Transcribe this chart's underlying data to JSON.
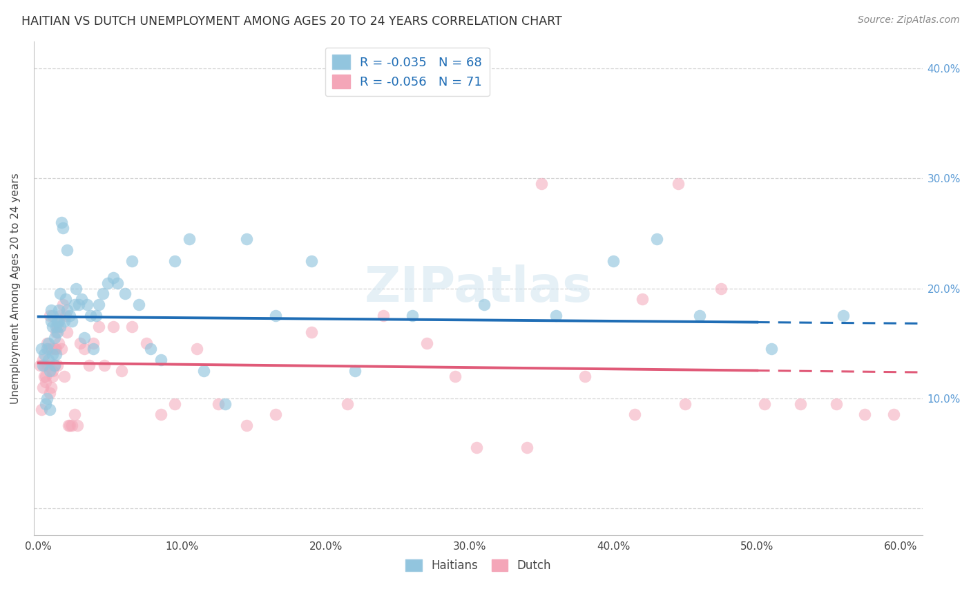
{
  "title": "HAITIAN VS DUTCH UNEMPLOYMENT AMONG AGES 20 TO 24 YEARS CORRELATION CHART",
  "source": "Source: ZipAtlas.com",
  "ylabel_label": "Unemployment Among Ages 20 to 24 years",
  "legend_r1": "-0.035",
  "legend_n1": "68",
  "legend_r2": "-0.056",
  "legend_n2": "71",
  "legend_label1": "Haitians",
  "legend_label2": "Dutch",
  "blue_color": "#92c5de",
  "pink_color": "#f4a6b8",
  "blue_line_color": "#1f6db5",
  "pink_line_color": "#e05a78",
  "blue_scatter_alpha": 0.65,
  "pink_scatter_alpha": 0.55,
  "marker_size": 160,
  "xlim": [
    -0.003,
    0.615
  ],
  "ylim": [
    -0.025,
    0.425
  ],
  "blue_R": -0.035,
  "pink_R": -0.056,
  "haitian_x": [
    0.002,
    0.003,
    0.004,
    0.005,
    0.006,
    0.006,
    0.007,
    0.007,
    0.008,
    0.008,
    0.009,
    0.009,
    0.01,
    0.01,
    0.01,
    0.011,
    0.011,
    0.012,
    0.012,
    0.013,
    0.013,
    0.014,
    0.014,
    0.015,
    0.015,
    0.016,
    0.017,
    0.018,
    0.019,
    0.02,
    0.02,
    0.022,
    0.023,
    0.025,
    0.026,
    0.028,
    0.03,
    0.032,
    0.034,
    0.036,
    0.038,
    0.04,
    0.042,
    0.045,
    0.048,
    0.052,
    0.055,
    0.06,
    0.065,
    0.07,
    0.078,
    0.085,
    0.095,
    0.105,
    0.115,
    0.13,
    0.145,
    0.165,
    0.19,
    0.22,
    0.26,
    0.31,
    0.36,
    0.4,
    0.43,
    0.46,
    0.51,
    0.56
  ],
  "haitian_y": [
    0.145,
    0.13,
    0.14,
    0.095,
    0.1,
    0.145,
    0.135,
    0.15,
    0.125,
    0.09,
    0.18,
    0.17,
    0.165,
    0.175,
    0.14,
    0.13,
    0.155,
    0.165,
    0.14,
    0.17,
    0.16,
    0.18,
    0.17,
    0.165,
    0.195,
    0.26,
    0.255,
    0.17,
    0.19,
    0.235,
    0.18,
    0.175,
    0.17,
    0.185,
    0.2,
    0.185,
    0.19,
    0.155,
    0.185,
    0.175,
    0.145,
    0.175,
    0.185,
    0.195,
    0.205,
    0.21,
    0.205,
    0.195,
    0.225,
    0.185,
    0.145,
    0.135,
    0.225,
    0.245,
    0.125,
    0.095,
    0.245,
    0.175,
    0.225,
    0.125,
    0.175,
    0.185,
    0.175,
    0.225,
    0.245,
    0.175,
    0.145,
    0.175
  ],
  "dutch_x": [
    0.001,
    0.002,
    0.003,
    0.003,
    0.004,
    0.004,
    0.005,
    0.005,
    0.006,
    0.006,
    0.007,
    0.007,
    0.008,
    0.008,
    0.009,
    0.009,
    0.01,
    0.01,
    0.011,
    0.011,
    0.012,
    0.012,
    0.013,
    0.013,
    0.014,
    0.015,
    0.016,
    0.017,
    0.018,
    0.019,
    0.02,
    0.021,
    0.022,
    0.023,
    0.025,
    0.027,
    0.029,
    0.032,
    0.035,
    0.038,
    0.042,
    0.046,
    0.052,
    0.058,
    0.065,
    0.075,
    0.085,
    0.095,
    0.11,
    0.125,
    0.145,
    0.165,
    0.19,
    0.215,
    0.24,
    0.27,
    0.305,
    0.34,
    0.38,
    0.415,
    0.445,
    0.475,
    0.505,
    0.53,
    0.555,
    0.575,
    0.595,
    0.35,
    0.29,
    0.42,
    0.45
  ],
  "dutch_y": [
    0.13,
    0.09,
    0.11,
    0.135,
    0.12,
    0.13,
    0.115,
    0.12,
    0.13,
    0.15,
    0.145,
    0.13,
    0.175,
    0.105,
    0.145,
    0.11,
    0.125,
    0.12,
    0.145,
    0.13,
    0.16,
    0.145,
    0.165,
    0.13,
    0.15,
    0.175,
    0.145,
    0.185,
    0.12,
    0.175,
    0.16,
    0.075,
    0.075,
    0.075,
    0.085,
    0.075,
    0.15,
    0.145,
    0.13,
    0.15,
    0.165,
    0.13,
    0.165,
    0.125,
    0.165,
    0.15,
    0.085,
    0.095,
    0.145,
    0.095,
    0.075,
    0.085,
    0.16,
    0.095,
    0.175,
    0.15,
    0.055,
    0.055,
    0.12,
    0.085,
    0.295,
    0.2,
    0.095,
    0.095,
    0.095,
    0.085,
    0.085,
    0.295,
    0.12,
    0.19,
    0.095
  ]
}
